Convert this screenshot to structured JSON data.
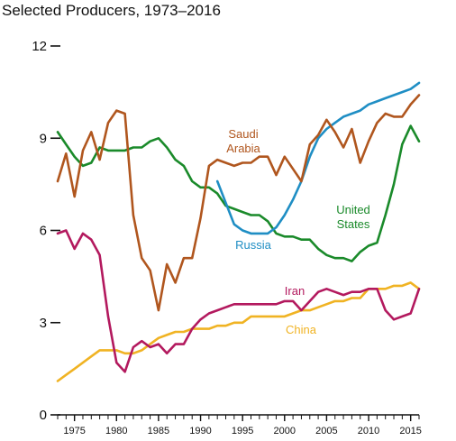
{
  "chart_data": {
    "type": "line",
    "title": "Selected Producers, 1973–2016",
    "xlabel": "",
    "ylabel": "",
    "xlim": [
      1973,
      2016
    ],
    "ylim": [
      0,
      12
    ],
    "y_ticks": [
      0,
      3,
      6,
      9,
      12
    ],
    "y_tick_labels": [
      "0",
      "3",
      "6",
      "9",
      "12"
    ],
    "x_ticks": [
      1975,
      1980,
      1985,
      1990,
      1995,
      2000,
      2005,
      2010,
      2015
    ],
    "x_tick_labels": [
      "1975",
      "1980",
      "1985",
      "1990",
      "1995",
      "2000",
      "2005",
      "2010",
      "2015"
    ],
    "grid": false,
    "legend": "inline labels",
    "series": [
      {
        "name": "Saudi Arabia",
        "label_lines": [
          "Saudi",
          "Arabia"
        ],
        "color": "#b0561e",
        "x": [
          1973,
          1974,
          1975,
          1976,
          1977,
          1978,
          1979,
          1980,
          1981,
          1982,
          1983,
          1984,
          1985,
          1986,
          1987,
          1988,
          1989,
          1990,
          1991,
          1992,
          1993,
          1994,
          1995,
          1996,
          1997,
          1998,
          1999,
          2000,
          2001,
          2002,
          2003,
          2004,
          2005,
          2006,
          2007,
          2008,
          2009,
          2010,
          2011,
          2012,
          2013,
          2014,
          2015,
          2016
        ],
        "y": [
          7.6,
          8.5,
          7.1,
          8.6,
          9.2,
          8.3,
          9.5,
          9.9,
          9.8,
          6.5,
          5.1,
          4.7,
          3.4,
          4.9,
          4.3,
          5.1,
          5.1,
          6.4,
          8.1,
          8.3,
          8.2,
          8.1,
          8.2,
          8.2,
          8.4,
          8.4,
          7.8,
          8.4,
          8.0,
          7.6,
          8.8,
          9.1,
          9.6,
          9.2,
          8.7,
          9.3,
          8.2,
          8.9,
          9.5,
          9.8,
          9.7,
          9.7,
          10.1,
          10.4
        ]
      },
      {
        "name": "Russia",
        "label_lines": [
          "Russia"
        ],
        "color": "#1f8ec4",
        "x": [
          1992,
          1993,
          1994,
          1995,
          1996,
          1997,
          1998,
          1999,
          2000,
          2001,
          2002,
          2003,
          2004,
          2005,
          2006,
          2007,
          2008,
          2009,
          2010,
          2011,
          2012,
          2013,
          2014,
          2015,
          2016
        ],
        "y": [
          7.6,
          6.9,
          6.2,
          6.0,
          5.9,
          5.9,
          5.9,
          6.1,
          6.5,
          7.0,
          7.6,
          8.4,
          9.0,
          9.3,
          9.5,
          9.7,
          9.8,
          9.9,
          10.1,
          10.2,
          10.3,
          10.4,
          10.5,
          10.6,
          10.8
        ]
      },
      {
        "name": "United States",
        "label_lines": [
          "United",
          "States"
        ],
        "color": "#1a8a2a",
        "x": [
          1973,
          1974,
          1975,
          1976,
          1977,
          1978,
          1979,
          1980,
          1981,
          1982,
          1983,
          1984,
          1985,
          1986,
          1987,
          1988,
          1989,
          1990,
          1991,
          1992,
          1993,
          1994,
          1995,
          1996,
          1997,
          1998,
          1999,
          2000,
          2001,
          2002,
          2003,
          2004,
          2005,
          2006,
          2007,
          2008,
          2009,
          2010,
          2011,
          2012,
          2013,
          2014,
          2015,
          2016
        ],
        "y": [
          9.2,
          8.8,
          8.4,
          8.1,
          8.2,
          8.7,
          8.6,
          8.6,
          8.6,
          8.7,
          8.7,
          8.9,
          9.0,
          8.7,
          8.3,
          8.1,
          7.6,
          7.4,
          7.4,
          7.2,
          6.8,
          6.7,
          6.6,
          6.5,
          6.5,
          6.3,
          5.9,
          5.8,
          5.8,
          5.7,
          5.7,
          5.4,
          5.2,
          5.1,
          5.1,
          5.0,
          5.3,
          5.5,
          5.6,
          6.5,
          7.5,
          8.8,
          9.4,
          8.9
        ]
      },
      {
        "name": "Iran",
        "label_lines": [
          "Iran"
        ],
        "color": "#b3195e",
        "x": [
          1973,
          1974,
          1975,
          1976,
          1977,
          1978,
          1979,
          1980,
          1981,
          1982,
          1983,
          1984,
          1985,
          1986,
          1987,
          1988,
          1989,
          1990,
          1991,
          1992,
          1993,
          1994,
          1995,
          1996,
          1997,
          1998,
          1999,
          2000,
          2001,
          2002,
          2003,
          2004,
          2005,
          2006,
          2007,
          2008,
          2009,
          2010,
          2011,
          2012,
          2013,
          2014,
          2015,
          2016
        ],
        "y": [
          5.9,
          6.0,
          5.4,
          5.9,
          5.7,
          5.2,
          3.2,
          1.7,
          1.4,
          2.2,
          2.4,
          2.2,
          2.3,
          2.0,
          2.3,
          2.3,
          2.8,
          3.1,
          3.3,
          3.4,
          3.5,
          3.6,
          3.6,
          3.6,
          3.6,
          3.6,
          3.6,
          3.7,
          3.7,
          3.4,
          3.7,
          4.0,
          4.1,
          4.0,
          3.9,
          4.0,
          4.0,
          4.1,
          4.1,
          3.4,
          3.1,
          3.2,
          3.3,
          4.1
        ]
      },
      {
        "name": "China",
        "label_lines": [
          "China"
        ],
        "color": "#f0b323",
        "x": [
          1973,
          1974,
          1975,
          1976,
          1977,
          1978,
          1979,
          1980,
          1981,
          1982,
          1983,
          1984,
          1985,
          1986,
          1987,
          1988,
          1989,
          1990,
          1991,
          1992,
          1993,
          1994,
          1995,
          1996,
          1997,
          1998,
          1999,
          2000,
          2001,
          2002,
          2003,
          2004,
          2005,
          2006,
          2007,
          2008,
          2009,
          2010,
          2011,
          2012,
          2013,
          2014,
          2015,
          2016
        ],
        "y": [
          1.1,
          1.3,
          1.5,
          1.7,
          1.9,
          2.1,
          2.1,
          2.1,
          2.0,
          2.0,
          2.1,
          2.3,
          2.5,
          2.6,
          2.7,
          2.7,
          2.8,
          2.8,
          2.8,
          2.9,
          2.9,
          3.0,
          3.0,
          3.2,
          3.2,
          3.2,
          3.2,
          3.2,
          3.3,
          3.4,
          3.4,
          3.5,
          3.6,
          3.7,
          3.7,
          3.8,
          3.8,
          4.1,
          4.1,
          4.1,
          4.2,
          4.2,
          4.3,
          4.1
        ]
      }
    ]
  }
}
